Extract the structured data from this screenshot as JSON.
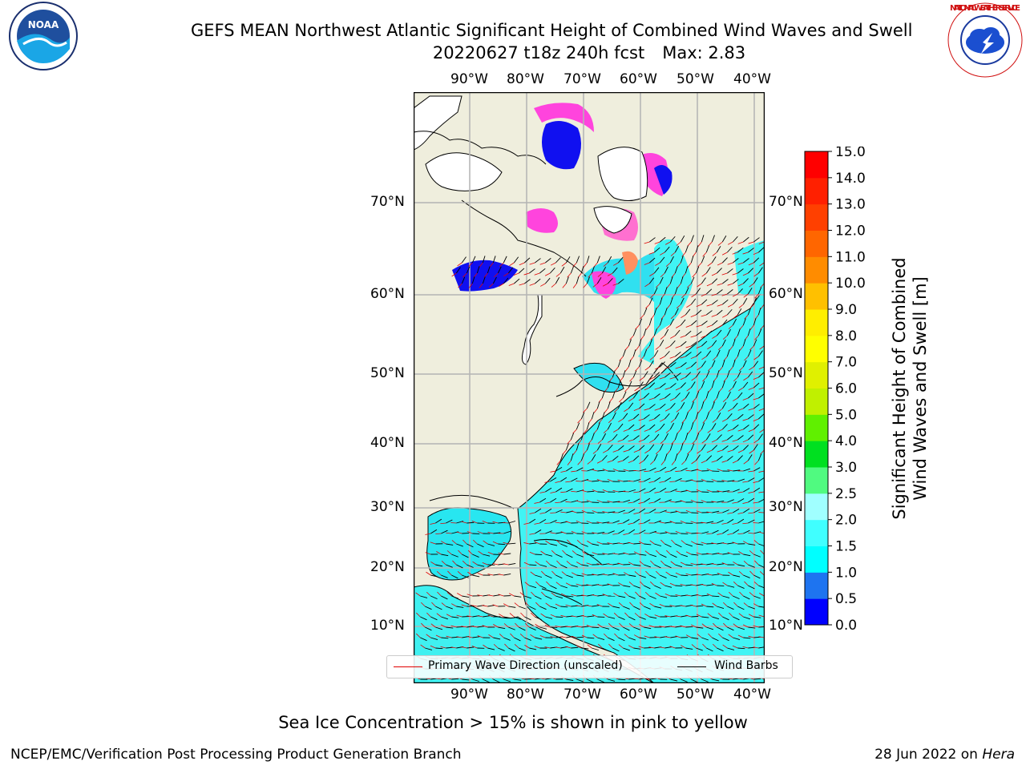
{
  "title": {
    "line1": "GEFS MEAN Northwest Atlantic Significant Height of Combined Wind Waves and Swell",
    "run": "20220627 t18z 240h fcst",
    "max": "Max: 2.83"
  },
  "logos": {
    "noaa": "NOAA",
    "nws": "NATIONAL WEATHER SERVICE"
  },
  "map": {
    "lon_labels": [
      "90°W",
      "80°W",
      "70°W",
      "60°W",
      "50°W",
      "40°W"
    ],
    "lat_labels": [
      "70°N",
      "60°N",
      "50°N",
      "40°N",
      "30°N",
      "20°N",
      "10°N"
    ]
  },
  "legend": {
    "wave_dir": "Primary Wave Direction (unscaled)",
    "barbs": "Wind Barbs",
    "wave_color": "#e00000",
    "barb_color": "#000000"
  },
  "colorbar": {
    "title_line1": "Significant Height of Combined",
    "title_line2": "Wind Waves and Swell [m]",
    "ticks": [
      "0.0",
      "0.5",
      "1.0",
      "1.5",
      "2.0",
      "2.5",
      "3.0",
      "4.0",
      "5.0",
      "6.0",
      "7.0",
      "8.0",
      "9.0",
      "10.0",
      "11.0",
      "12.0",
      "13.0",
      "14.0",
      "15.0"
    ],
    "colors": [
      "#0000ff",
      "#1e74f0",
      "#00ffff",
      "#40ffff",
      "#a0ffff",
      "#50fa80",
      "#00e020",
      "#60f000",
      "#c0f000",
      "#e0f000",
      "#ffff00",
      "#ffee00",
      "#ffc000",
      "#ff8c00",
      "#ff6600",
      "#ff4000",
      "#ff2000",
      "#ff0000"
    ]
  },
  "caption": "Sea Ice Concentration > 15% is shown in pink to yellow",
  "footer": {
    "left": "NCEP/EMC/Verification Post Processing Product Generation Branch",
    "date": "28 Jun 2022 on ",
    "host": "Hera"
  }
}
